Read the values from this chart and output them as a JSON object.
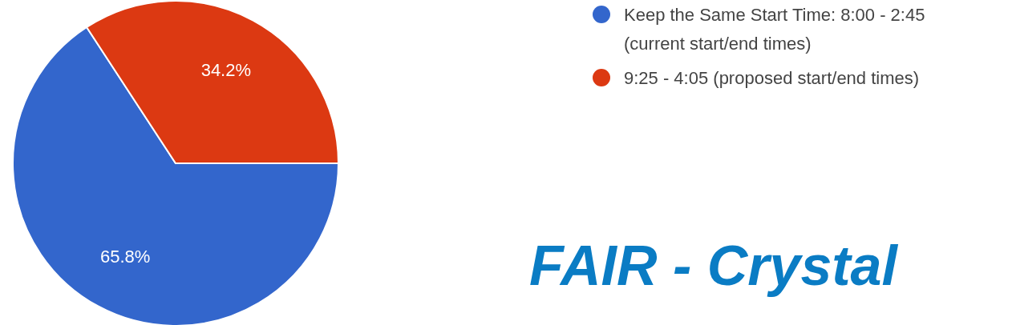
{
  "chart_data": {
    "type": "pie",
    "categories": [
      "Keep the Same Start Time: 8:00 - 2:45 (current start/end times)",
      "9:25 - 4:05 (proposed start/end times)"
    ],
    "values": [
      65.8,
      34.2
    ],
    "colors": [
      "#3366cc",
      "#dc3912"
    ],
    "value_labels": [
      "65.8%",
      "34.2%"
    ],
    "legend": "top right",
    "annotations": [
      "FAIR - Crystal"
    ]
  }
}
